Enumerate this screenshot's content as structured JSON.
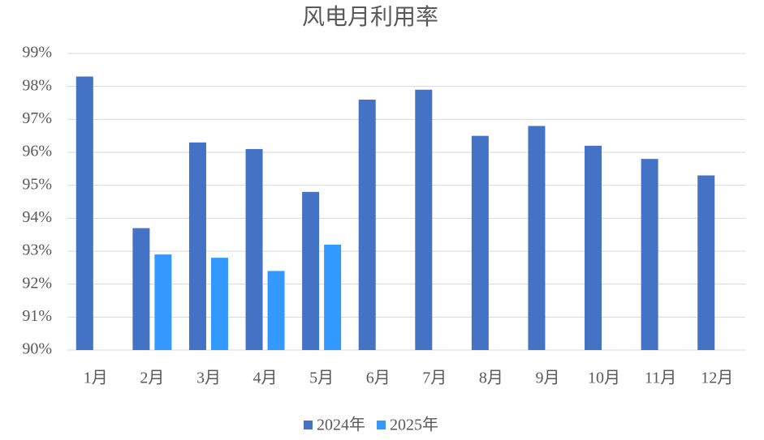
{
  "chart_data": {
    "type": "bar",
    "title": "风电月利用率",
    "categories": [
      "1月",
      "2月",
      "3月",
      "4月",
      "5月",
      "6月",
      "7月",
      "8月",
      "9月",
      "10月",
      "11月",
      "12月"
    ],
    "series": [
      {
        "name": "2024年",
        "color": "#4472c4",
        "values": [
          98.3,
          93.7,
          96.3,
          96.1,
          94.8,
          97.6,
          97.9,
          96.5,
          96.8,
          96.2,
          95.8,
          95.3
        ]
      },
      {
        "name": "2025年",
        "color": "#3399ff",
        "values": [
          null,
          92.9,
          92.8,
          92.4,
          93.2,
          null,
          null,
          null,
          null,
          null,
          null,
          null
        ]
      }
    ],
    "ylim": [
      90,
      99
    ],
    "yticks": [
      {
        "value": 90,
        "label": "90%"
      },
      {
        "value": 91,
        "label": "91%"
      },
      {
        "value": 92,
        "label": "92%"
      },
      {
        "value": 93,
        "label": "93%"
      },
      {
        "value": 94,
        "label": "94%"
      },
      {
        "value": 95,
        "label": "95%"
      },
      {
        "value": 96,
        "label": "96%"
      },
      {
        "value": 97,
        "label": "97%"
      },
      {
        "value": 98,
        "label": "98%"
      },
      {
        "value": 99,
        "label": "99%"
      }
    ],
    "grid": true,
    "legend": "bottom"
  }
}
